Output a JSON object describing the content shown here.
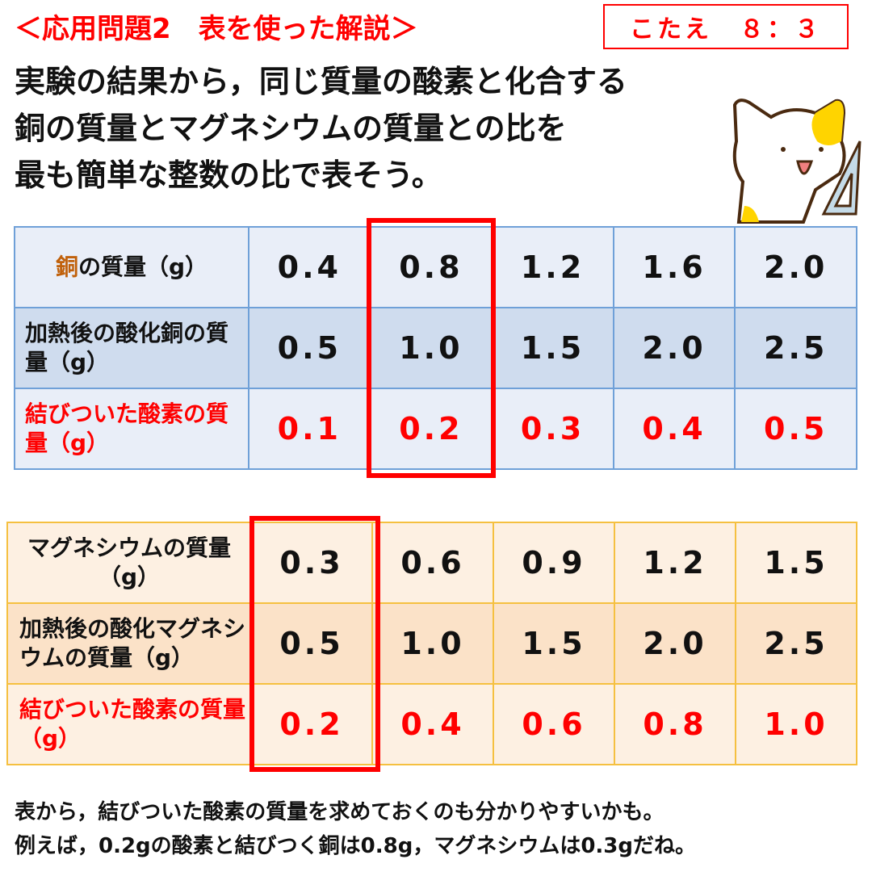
{
  "title": "＜応用問題2　表を使った解説＞",
  "answer": "こたえ　８：３",
  "question": [
    "実験の結果から，同じ質量の酸素と化合する",
    "銅の質量とマグネシウムの質量との比を",
    "最も簡単な整数の比で表そう。"
  ],
  "table_copper": {
    "rows": [
      {
        "label_prefix": "銅",
        "label": "の質量（g）",
        "values": [
          "0.4",
          "0.8",
          "1.2",
          "1.6",
          "2.0"
        ]
      },
      {
        "label": "加熱後の酸化銅の質量（g）",
        "values": [
          "0.5",
          "1.0",
          "1.5",
          "2.0",
          "2.5"
        ]
      },
      {
        "label": "結びついた酸素の質量（g）",
        "values": [
          "0.1",
          "0.2",
          "0.3",
          "0.4",
          "0.5"
        ]
      }
    ]
  },
  "table_magnesium": {
    "rows": [
      {
        "label": "マグネシウムの質量（g）",
        "values": [
          "0.3",
          "0.6",
          "0.9",
          "1.2",
          "1.5"
        ]
      },
      {
        "label": "加熱後の酸化マグネシウムの質量（g）",
        "values": [
          "0.5",
          "1.0",
          "1.5",
          "2.0",
          "2.5"
        ]
      },
      {
        "label": "結びついた酸素の質量（g）",
        "values": [
          "0.2",
          "0.4",
          "0.6",
          "0.8",
          "1.0"
        ]
      }
    ]
  },
  "footer": [
    "表から，結びついた酸素の質量を求めておくのも分かりやすいかも。",
    "例えば，0.2gの酸素と結びつく銅は0.8g，マグネシウムは0.3gだね。"
  ]
}
